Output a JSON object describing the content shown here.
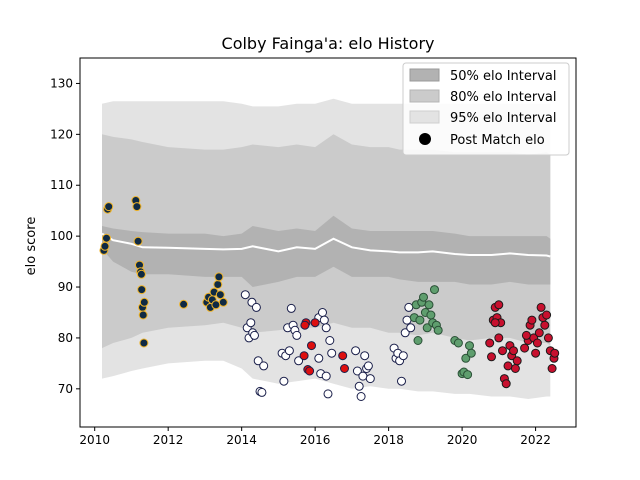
{
  "chart_data": {
    "type": "scatter",
    "title": "Colby Fainga'a: elo History",
    "xlabel": "",
    "ylabel": "elo score",
    "xlim": [
      2009.6,
      2023.1
    ],
    "ylim": [
      62.5,
      135
    ],
    "xticks": [
      2010,
      2012,
      2014,
      2016,
      2018,
      2020,
      2022
    ],
    "yticks": [
      70,
      80,
      90,
      100,
      110,
      120,
      130
    ],
    "legend": {
      "placement": "top-right",
      "entries": [
        "50% elo Interval",
        "80% elo Interval",
        "95% elo Interval",
        "Post Match elo"
      ]
    },
    "colors": {
      "band95": "#e3e3e3",
      "band80": "#cbcbcb",
      "band50": "#b2b2b2",
      "median": "#ffffff"
    },
    "bands": {
      "x": [
        2010.2,
        2010.5,
        2011.0,
        2011.3,
        2012.0,
        2013.0,
        2013.5,
        2014.0,
        2014.3,
        2015.0,
        2015.5,
        2016.0,
        2016.5,
        2017.0,
        2017.5,
        2018.0,
        2018.3,
        2018.8,
        2019.2,
        2019.8,
        2020.2,
        2020.8,
        2021.3,
        2021.8,
        2022.3,
        2022.4
      ],
      "median": [
        100.5,
        99.2,
        98.5,
        97.8,
        97.7,
        97.5,
        97.4,
        97.5,
        98.0,
        97.0,
        97.8,
        97.5,
        99.5,
        97.8,
        97.2,
        97.0,
        96.8,
        96.8,
        97.0,
        96.5,
        96.3,
        96.3,
        96.6,
        96.3,
        96.2,
        96.0
      ],
      "p50_low": [
        97.5,
        95.0,
        93.0,
        92.5,
        92.5,
        92.0,
        92.0,
        92.0,
        90.0,
        91.0,
        92.0,
        92.0,
        94.0,
        92.0,
        92.0,
        92.0,
        91.5,
        91.0,
        91.0,
        91.0,
        90.5,
        90.5,
        91.0,
        90.5,
        90.5,
        90.5
      ],
      "p50_high": [
        102.0,
        101.5,
        101.0,
        100.8,
        100.5,
        100.5,
        100.0,
        100.5,
        102.0,
        101.0,
        101.5,
        101.0,
        104.0,
        101.5,
        101.0,
        101.0,
        101.0,
        101.0,
        101.0,
        100.5,
        100.0,
        100.0,
        100.0,
        100.0,
        100.0,
        99.5
      ],
      "p80_low": [
        78.0,
        79.0,
        80.0,
        81.0,
        82.0,
        82.5,
        83.0,
        82.0,
        81.0,
        81.5,
        82.0,
        82.0,
        83.0,
        82.0,
        82.0,
        81.0,
        81.0,
        80.5,
        81.0,
        80.0,
        79.5,
        80.0,
        80.0,
        79.0,
        79.0,
        78.5
      ],
      "p80_high": [
        120.0,
        119.5,
        119.0,
        118.5,
        117.5,
        117.0,
        117.0,
        117.5,
        118.0,
        117.5,
        118.0,
        117.5,
        120.0,
        118.0,
        117.5,
        117.5,
        117.0,
        117.0,
        117.0,
        116.5,
        116.5,
        116.5,
        116.5,
        116.0,
        116.5,
        116.0
      ],
      "p95_low": [
        72.0,
        72.5,
        73.5,
        74.0,
        75.0,
        75.5,
        75.5,
        74.0,
        72.0,
        71.0,
        71.5,
        72.0,
        71.0,
        70.0,
        70.5,
        70.0,
        70.0,
        69.5,
        69.5,
        69.0,
        69.0,
        68.5,
        68.5,
        68.0,
        68.5,
        68.5
      ],
      "p95_high": [
        126.0,
        126.5,
        126.5,
        126.5,
        126.5,
        126.5,
        126.5,
        126.0,
        125.5,
        125.5,
        126.0,
        126.0,
        127.0,
        126.0,
        126.0,
        126.0,
        126.0,
        126.0,
        126.0,
        126.0,
        126.0,
        126.0,
        126.0,
        126.0,
        126.0,
        126.0
      ]
    },
    "series": [
      {
        "fill": "#0f2a44",
        "edge": "#f0b429",
        "points": [
          [
            2010.25,
            97.2
          ],
          [
            2010.28,
            98.0
          ],
          [
            2010.32,
            99.6
          ],
          [
            2010.35,
            105.3
          ],
          [
            2010.38,
            105.8
          ],
          [
            2011.12,
            107.0
          ],
          [
            2011.15,
            105.8
          ],
          [
            2011.18,
            99.0
          ],
          [
            2011.22,
            94.3
          ],
          [
            2011.25,
            93.0
          ],
          [
            2011.27,
            92.5
          ],
          [
            2011.28,
            89.5
          ],
          [
            2011.3,
            86.0
          ],
          [
            2011.32,
            84.5
          ],
          [
            2011.35,
            87.0
          ],
          [
            2011.34,
            79.0
          ],
          [
            2012.42,
            86.6
          ],
          [
            2013.05,
            87.0
          ],
          [
            2013.1,
            88.0
          ],
          [
            2013.15,
            86.0
          ],
          [
            2013.2,
            87.5
          ],
          [
            2013.25,
            89.0
          ],
          [
            2013.3,
            86.5
          ],
          [
            2013.35,
            90.5
          ],
          [
            2013.38,
            92.0
          ],
          [
            2013.42,
            88.5
          ],
          [
            2013.5,
            87.0
          ]
        ]
      },
      {
        "fill": "#ffffff",
        "edge": "#1a1f4a",
        "points": [
          [
            2014.1,
            88.5
          ],
          [
            2014.15,
            82.0
          ],
          [
            2014.2,
            80.0
          ],
          [
            2014.25,
            83.0
          ],
          [
            2014.28,
            87.0
          ],
          [
            2014.3,
            81.0
          ],
          [
            2014.35,
            80.5
          ],
          [
            2014.4,
            86.0
          ],
          [
            2014.45,
            75.5
          ],
          [
            2014.5,
            69.5
          ],
          [
            2014.55,
            69.3
          ],
          [
            2014.6,
            74.5
          ],
          [
            2015.1,
            77.0
          ],
          [
            2015.15,
            71.5
          ],
          [
            2015.2,
            76.5
          ],
          [
            2015.25,
            82.0
          ],
          [
            2015.3,
            77.5
          ],
          [
            2015.35,
            85.8
          ],
          [
            2015.4,
            82.5
          ],
          [
            2015.45,
            81.5
          ],
          [
            2015.5,
            80.5
          ],
          [
            2015.55,
            75.5
          ],
          [
            2016.1,
            76.0
          ],
          [
            2016.15,
            73.0
          ],
          [
            2016.3,
            72.5
          ],
          [
            2016.35,
            69.0
          ],
          [
            2016.1,
            84.0
          ],
          [
            2016.2,
            85.0
          ],
          [
            2016.25,
            83.5
          ],
          [
            2016.3,
            82.0
          ],
          [
            2016.4,
            79.5
          ],
          [
            2016.45,
            77.0
          ],
          [
            2017.1,
            77.5
          ],
          [
            2017.15,
            73.5
          ],
          [
            2017.2,
            70.5
          ],
          [
            2017.25,
            68.5
          ],
          [
            2017.3,
            72.5
          ],
          [
            2017.35,
            76.5
          ],
          [
            2017.4,
            74.0
          ],
          [
            2017.45,
            74.5
          ],
          [
            2017.5,
            72.0
          ],
          [
            2018.15,
            78.0
          ],
          [
            2018.2,
            76.0
          ],
          [
            2018.25,
            77.0
          ],
          [
            2018.3,
            75.5
          ],
          [
            2018.35,
            71.5
          ],
          [
            2018.4,
            76.5
          ],
          [
            2018.45,
            81.0
          ],
          [
            2018.5,
            83.5
          ],
          [
            2018.55,
            86.0
          ],
          [
            2018.6,
            82.0
          ]
        ]
      },
      {
        "fill": "#dd0f0f",
        "edge": "#1a1f4a",
        "points": [
          [
            2015.7,
            76.5
          ],
          [
            2015.75,
            83.0
          ],
          [
            2015.8,
            73.8
          ],
          [
            2015.85,
            73.5
          ],
          [
            2015.9,
            78.5
          ],
          [
            2016.0,
            83.0
          ],
          [
            2015.72,
            82.5
          ],
          [
            2016.75,
            76.5
          ],
          [
            2016.8,
            74.0
          ]
        ]
      },
      {
        "fill": "#5f9e6e",
        "edge": "#2a4f36",
        "points": [
          [
            2018.7,
            84.0
          ],
          [
            2018.75,
            86.5
          ],
          [
            2018.8,
            79.5
          ],
          [
            2018.85,
            83.5
          ],
          [
            2018.9,
            87.0
          ],
          [
            2018.95,
            88.0
          ],
          [
            2019.0,
            85.0
          ],
          [
            2019.05,
            82.0
          ],
          [
            2019.1,
            86.5
          ],
          [
            2019.15,
            84.5
          ],
          [
            2019.2,
            83.0
          ],
          [
            2019.25,
            89.5
          ],
          [
            2019.3,
            82.5
          ],
          [
            2019.35,
            81.5
          ],
          [
            2019.8,
            79.5
          ],
          [
            2019.9,
            79.0
          ],
          [
            2020.0,
            73.0
          ],
          [
            2020.05,
            73.3
          ],
          [
            2020.1,
            76.0
          ],
          [
            2020.15,
            72.8
          ],
          [
            2020.2,
            78.5
          ],
          [
            2020.25,
            77.0
          ]
        ]
      },
      {
        "fill": "#c8102e",
        "edge": "#1a1a1a",
        "points": [
          [
            2020.75,
            79.0
          ],
          [
            2020.8,
            76.3
          ],
          [
            2020.85,
            83.5
          ],
          [
            2020.9,
            86.0
          ],
          [
            2020.95,
            84.0
          ],
          [
            2021.0,
            80.0
          ],
          [
            2021.05,
            83.0
          ],
          [
            2021.1,
            77.5
          ],
          [
            2021.15,
            72.0
          ],
          [
            2021.2,
            71.0
          ],
          [
            2021.25,
            74.5
          ],
          [
            2021.3,
            78.5
          ],
          [
            2021.35,
            76.5
          ],
          [
            2021.4,
            77.5
          ],
          [
            2021.45,
            74.0
          ],
          [
            2021.5,
            75.5
          ],
          [
            2021.8,
            79.5
          ],
          [
            2021.85,
            82.5
          ],
          [
            2021.9,
            83.5
          ],
          [
            2021.95,
            80.0
          ],
          [
            2022.0,
            77.0
          ],
          [
            2022.05,
            79.0
          ],
          [
            2022.1,
            81.0
          ],
          [
            2022.15,
            86.0
          ],
          [
            2022.2,
            84.0
          ],
          [
            2022.25,
            82.5
          ],
          [
            2022.3,
            84.5
          ],
          [
            2022.35,
            80.0
          ],
          [
            2022.4,
            77.5
          ],
          [
            2022.45,
            74.0
          ],
          [
            2022.5,
            76.0
          ],
          [
            2022.52,
            77.0
          ],
          [
            2021.7,
            78.0
          ],
          [
            2021.75,
            80.5
          ],
          [
            2020.9,
            83.0
          ],
          [
            2021.0,
            86.5
          ]
        ]
      }
    ]
  }
}
